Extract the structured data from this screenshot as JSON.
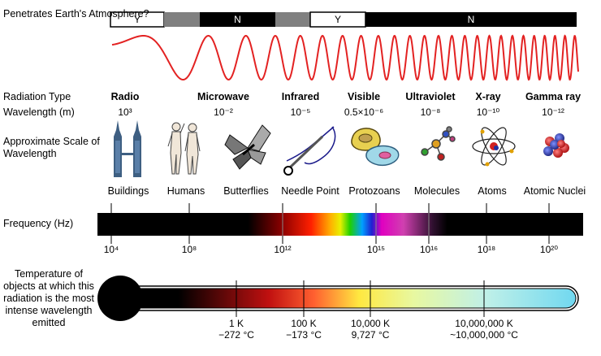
{
  "atmosphere": {
    "question": "Penetrates Earth's Atmosphere?",
    "segments": [
      {
        "label": "Y",
        "color": "#ffffff"
      },
      {
        "label": "",
        "color": "#808080"
      },
      {
        "label": "N",
        "color": "#000000"
      },
      {
        "label": "",
        "color": "#808080"
      },
      {
        "label": "Y",
        "color": "#ffffff"
      },
      {
        "label": "N",
        "color": "#000000"
      }
    ]
  },
  "labels": {
    "radiation_type": "Radiation Type",
    "wavelength_m": "Wavelength (m)",
    "approx_scale": "Approximate Scale of Wavelength",
    "frequency": "Frequency (Hz)",
    "temperature": "Temperature of objects at which this radiation is the most intense wavelength emitted"
  },
  "radiation": [
    {
      "name": "Radio",
      "wavelength": "10³"
    },
    {
      "name": "Microwave",
      "wavelength": "10⁻²"
    },
    {
      "name": "Infrared",
      "wavelength": "10⁻⁵"
    },
    {
      "name": "Visible",
      "wavelength": "0.5×10⁻⁶"
    },
    {
      "name": "Ultraviolet",
      "wavelength": "10⁻⁸"
    },
    {
      "name": "X-ray",
      "wavelength": "10⁻¹⁰"
    },
    {
      "name": "Gamma ray",
      "wavelength": "10⁻¹²"
    }
  ],
  "scale_objects": [
    "Buildings",
    "Humans",
    "Butterflies",
    "Needle Point",
    "Protozoans",
    "Molecules",
    "Atoms",
    "Atomic Nuclei"
  ],
  "frequency_ticks": [
    "10⁴",
    "10⁸",
    "10¹²",
    "10¹⁵",
    "10¹⁶",
    "10¹⁸",
    "10²⁰"
  ],
  "temperature_ticks": [
    {
      "k": "1 K",
      "c": "−272 °C"
    },
    {
      "k": "100 K",
      "c": "−173 °C"
    },
    {
      "k": "10,000 K",
      "c": "9,727 °C"
    },
    {
      "k": "10,000,000 K",
      "c": "~10,000,000 °C"
    }
  ],
  "colors": {
    "wave": "#e32222",
    "thermometer_hot": "#7ee0f0"
  }
}
